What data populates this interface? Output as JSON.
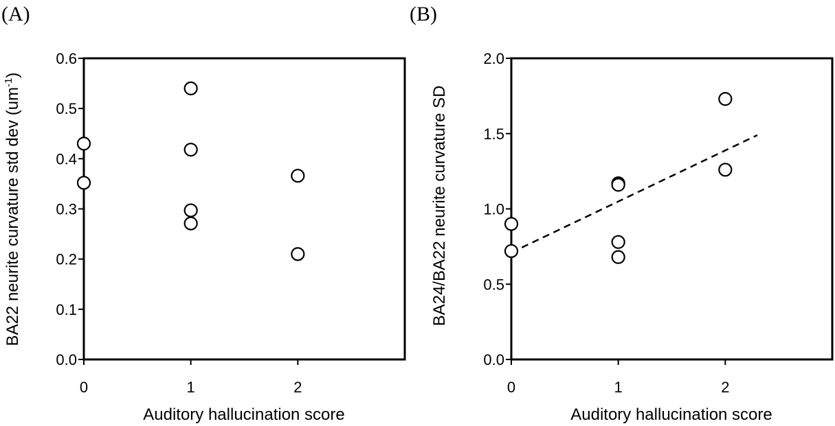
{
  "chart_data": [
    {
      "panel_label": "(A)",
      "type": "scatter",
      "xlabel": "Auditory hallucination score",
      "ylabel": "BA22 neurite curvature std dev (um",
      "ylabel_sup": "-1",
      "ylabel_close": ")",
      "xlim": [
        0,
        3
      ],
      "ylim": [
        0,
        0.6
      ],
      "xticks": [
        0,
        1,
        2
      ],
      "xtick_labels": [
        "0",
        "1",
        "2"
      ],
      "yticks": [
        0,
        0.1,
        0.2,
        0.3,
        0.4,
        0.5,
        0.6
      ],
      "ytick_labels": [
        "0.0",
        "0.1",
        "0.2",
        "0.3",
        "0.4",
        "0.5",
        "0.6"
      ],
      "points": [
        {
          "x": 0,
          "y": 0.43
        },
        {
          "x": 0,
          "y": 0.352
        },
        {
          "x": 1,
          "y": 0.54
        },
        {
          "x": 1,
          "y": 0.418
        },
        {
          "x": 1,
          "y": 0.297
        },
        {
          "x": 1,
          "y": 0.271
        },
        {
          "x": 2,
          "y": 0.366
        },
        {
          "x": 2,
          "y": 0.21
        }
      ],
      "grid": false,
      "trendline": null
    },
    {
      "panel_label": "(B)",
      "type": "scatter",
      "xlabel": "Auditory hallucination score",
      "ylabel": "BA24/BA22 neurite curvature SD",
      "xlim": [
        0,
        3
      ],
      "ylim": [
        0,
        2.0
      ],
      "xticks": [
        0,
        1,
        2
      ],
      "xtick_labels": [
        "0",
        "1",
        "2"
      ],
      "yticks": [
        0,
        0.5,
        1.0,
        1.5,
        2.0
      ],
      "ytick_labels": [
        "0.0",
        "0.5",
        "1.0",
        "1.5",
        "2.0"
      ],
      "points": [
        {
          "x": 0,
          "y": 0.9
        },
        {
          "x": 0,
          "y": 0.72
        },
        {
          "x": 1,
          "y": 1.17
        },
        {
          "x": 1,
          "y": 1.16
        },
        {
          "x": 1,
          "y": 0.78
        },
        {
          "x": 1,
          "y": 0.68
        },
        {
          "x": 2,
          "y": 1.73
        },
        {
          "x": 2,
          "y": 1.26
        }
      ],
      "grid": false,
      "trendline": {
        "style": "dashed",
        "x": [
          0,
          2.3
        ],
        "y": [
          0.71,
          1.49
        ]
      }
    }
  ]
}
